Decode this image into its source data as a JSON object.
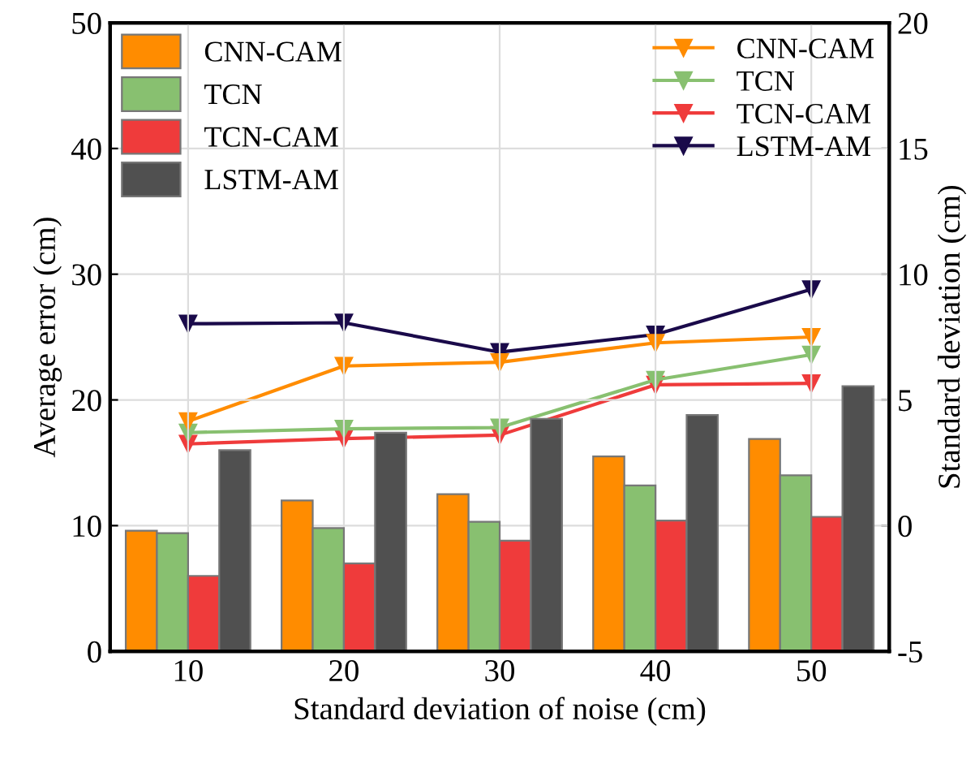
{
  "chart_data": {
    "type": "bar",
    "xlabel": "Standard deviation of noise (cm)",
    "ylabel": "Average error (cm)",
    "y2label": "Standard deviation (cm)",
    "categories": [
      "10",
      "20",
      "30",
      "40",
      "50"
    ],
    "series": [
      {
        "name": "CNN-CAM",
        "color": "#ff8c00",
        "values": [
          9.6,
          12.0,
          12.5,
          15.5,
          16.9
        ]
      },
      {
        "name": "TCN",
        "color": "#88c070",
        "values": [
          9.4,
          9.8,
          10.3,
          13.2,
          14.0
        ]
      },
      {
        "name": "TCN-CAM",
        "color": "#ef3b3b",
        "values": [
          6.0,
          7.0,
          8.8,
          10.4,
          10.7
        ]
      },
      {
        "name": "LSTM-AM",
        "color": "#505050",
        "values": [
          16.0,
          17.4,
          18.5,
          18.8,
          21.1
        ]
      },
      {
        "name": "CNN-CAM",
        "type": "line",
        "axis": "y2",
        "color": "#ff8c00",
        "values": [
          4.15,
          6.35,
          6.5,
          7.27,
          7.5
        ]
      },
      {
        "name": "TCN",
        "type": "line",
        "axis": "y2",
        "color": "#88c070",
        "values": [
          3.7,
          3.85,
          3.9,
          5.8,
          6.8
        ]
      },
      {
        "name": "TCN-CAM",
        "type": "line",
        "axis": "y2",
        "color": "#ef3b3b",
        "values": [
          3.25,
          3.46,
          3.6,
          5.6,
          5.66
        ]
      },
      {
        "name": "LSTM-AM",
        "type": "line",
        "axis": "y2",
        "color": "#1a0a4a",
        "values": [
          8.03,
          8.07,
          6.9,
          7.6,
          9.4
        ]
      }
    ],
    "ylim": [
      0,
      50
    ],
    "yticks": [
      0,
      10,
      20,
      30,
      40,
      50
    ],
    "y2lim": [
      -5,
      20
    ],
    "y2ticks": [
      -5,
      0,
      5,
      10,
      15,
      20
    ],
    "marker": "triangle",
    "line_style": "solid",
    "grid": true,
    "legend": "top"
  }
}
